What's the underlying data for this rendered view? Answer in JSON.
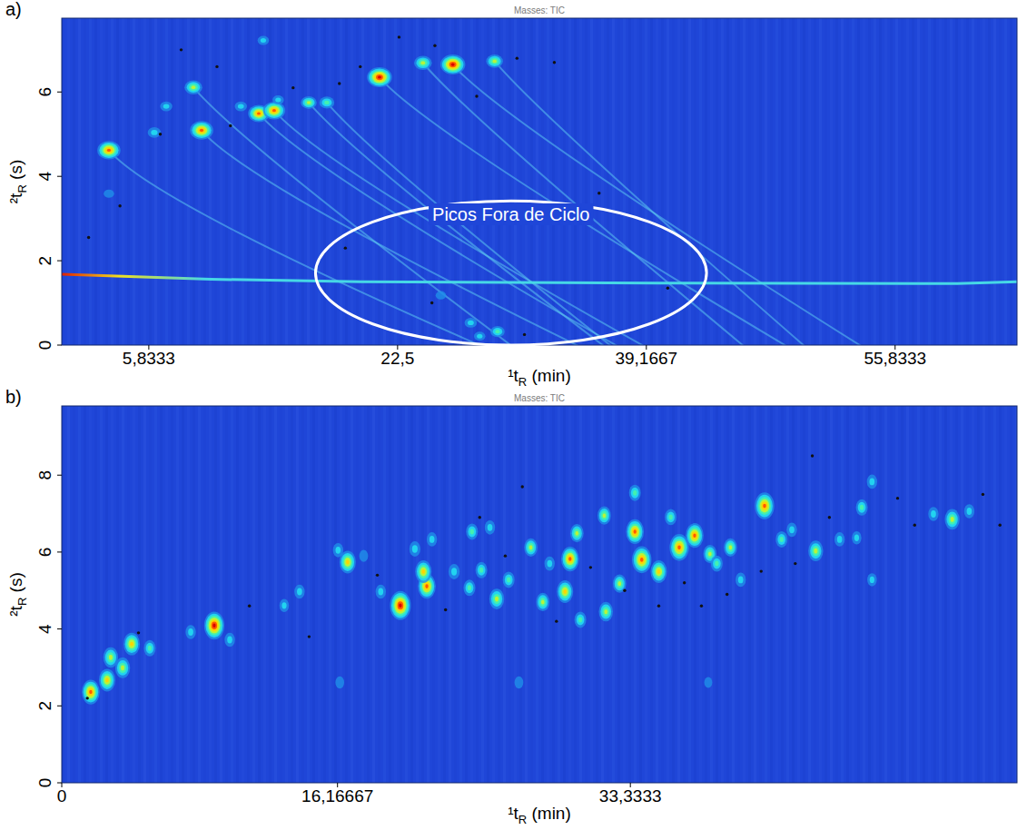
{
  "chart_data": [
    {
      "type": "scatter",
      "panel_label": "a)",
      "header": "Masses: TIC",
      "x_label": "¹tR (min)",
      "y_label": "²tR (s)",
      "xlim": [
        0,
        64
      ],
      "xticks": [
        {
          "value": 5.8333,
          "label": "5,8333"
        },
        {
          "value": 22.5,
          "label": "22,5"
        },
        {
          "value": 39.1667,
          "label": "39,1667"
        },
        {
          "value": 55.8333,
          "label": "55,8333"
        }
      ],
      "ylim": [
        0,
        7.75
      ],
      "yticks": [
        0,
        2,
        4,
        6
      ],
      "zlim": [
        0,
        1
      ],
      "series": [
        {
          "type": "scatter",
          "marker": "blob",
          "x": [
            3.16,
            9.37,
            8.82,
            13.2,
            14.23,
            16.55,
            17.76,
            21.29,
            24.2,
            26.2,
            29.0,
            6.2,
            7.0,
            12.0,
            14.5,
            3.16,
            25.4,
            27.4,
            29.2,
            28.0,
            13.5
          ],
          "values": [
            4.62,
            5.09,
            6.11,
            5.49,
            5.56,
            5.75,
            5.75,
            6.35,
            6.69,
            6.65,
            6.73,
            5.04,
            5.66,
            5.66,
            5.81,
            3.59,
            1.18,
            0.53,
            0.32,
            0.21,
            7.22
          ],
          "intensity": [
            0.9,
            0.9,
            0.6,
            0.8,
            0.85,
            0.5,
            0.45,
            1.0,
            0.6,
            1.0,
            0.55,
            0.35,
            0.3,
            0.3,
            0.25,
            0.2,
            0.2,
            0.3,
            0.4,
            0.25,
            0.25
          ]
        },
        {
          "type": "scatter",
          "marker": "dot",
          "color": "#111111",
          "x": [
            1.8,
            3.9,
            6.6,
            10.4,
            11.3,
            15.5,
            18.6,
            20.0,
            22.6,
            25.0,
            27.8,
            30.5,
            33.0,
            24.8,
            31.0,
            19.0,
            8.0,
            36.0,
            40.6
          ],
          "values": [
            2.55,
            3.3,
            5.0,
            6.6,
            5.2,
            6.1,
            6.2,
            6.6,
            7.3,
            7.1,
            5.9,
            6.8,
            6.7,
            1.0,
            0.25,
            2.3,
            7.0,
            3.6,
            1.35
          ]
        },
        {
          "type": "line",
          "color": "#46d8e6",
          "x": [
            0,
            5,
            10,
            20,
            40,
            60,
            64
          ],
          "values": [
            1.68,
            1.62,
            1.56,
            1.5,
            1.47,
            1.46,
            1.5
          ]
        }
      ],
      "annotations": [
        {
          "text": "Picos Fora de Ciclo",
          "x": 30.1,
          "y": 2.95,
          "ellipse": {
            "cx": 30.1,
            "cy": 1.71,
            "rx": 13.1,
            "ry": 1.71
          }
        }
      ]
    },
    {
      "type": "scatter",
      "panel_label": "b)",
      "header": "Masses: TIC",
      "x_label": "¹tR (min)",
      "y_label": "²tR (s)",
      "xlim": [
        0,
        56
      ],
      "xticks": [
        0,
        {
          "value": 16.16667,
          "label": "16,16667"
        },
        {
          "value": 33.3333,
          "label": "33,3333"
        }
      ],
      "ylim": [
        0,
        9.8
      ],
      "yticks": [
        0,
        2,
        4,
        6,
        8
      ],
      "zlim": [
        0,
        1
      ],
      "series": [
        {
          "type": "scatter",
          "marker": "blob",
          "x": [
            1.7,
            2.66,
            3.57,
            2.87,
            4.1,
            5.16,
            7.56,
            8.94,
            9.85,
            13.04,
            13.94,
            16.76,
            16.2,
            17.7,
            19.85,
            21.4,
            21.2,
            21.7,
            24.05,
            24.6,
            25.5,
            26.2,
            27.5,
            28.2,
            28.6,
            29.5,
            29.8,
            30.2,
            30.4,
            31.8,
            31.9,
            32.7,
            33.6,
            34.0,
            35.0,
            33.6,
            35.7,
            36.2,
            37.1,
            38.0,
            38.4,
            39.2,
            39.8,
            41.2,
            42.2,
            42.8,
            44.2,
            45.6,
            46.6,
            46.9,
            47.5,
            51.1,
            52.2,
            53.2,
            47.5,
            16.3,
            26.8,
            37.9,
            23.9,
            23.0,
            25.1,
            20.7,
            18.7
          ],
          "values": [
            2.36,
            2.67,
            2.99,
            3.26,
            3.61,
            3.5,
            3.92,
            4.09,
            3.72,
            4.61,
            4.97,
            5.74,
            6.05,
            5.9,
            4.61,
            5.11,
            5.49,
            6.33,
            6.53,
            5.53,
            4.78,
            5.28,
            6.12,
            4.7,
            5.7,
            4.97,
            5.82,
            6.49,
            4.24,
            6.95,
            4.45,
            5.18,
            6.53,
            5.8,
            5.49,
            7.54,
            6.91,
            6.12,
            6.43,
            5.95,
            5.7,
            6.12,
            5.28,
            7.2,
            6.33,
            6.58,
            6.03,
            6.33,
            6.37,
            7.16,
            7.83,
            6.99,
            6.85,
            7.06,
            5.28,
            2.61,
            2.61,
            2.61,
            5.07,
            5.49,
            6.64,
            6.08,
            4.97
          ],
          "intensity": [
            0.8,
            0.7,
            0.6,
            0.6,
            0.7,
            0.4,
            0.3,
            0.95,
            0.3,
            0.25,
            0.3,
            0.7,
            0.3,
            0.2,
            1.0,
            0.8,
            0.7,
            0.3,
            0.4,
            0.4,
            0.6,
            0.4,
            0.5,
            0.5,
            0.3,
            0.7,
            0.8,
            0.5,
            0.4,
            0.5,
            0.55,
            0.5,
            0.8,
            0.9,
            0.7,
            0.4,
            0.4,
            0.9,
            0.8,
            0.5,
            0.4,
            0.5,
            0.3,
            0.9,
            0.4,
            0.3,
            0.6,
            0.3,
            0.25,
            0.4,
            0.3,
            0.3,
            0.6,
            0.3,
            0.25,
            0.2,
            0.2,
            0.15,
            0.4,
            0.35,
            0.3,
            0.35,
            0.3
          ]
        },
        {
          "type": "scatter",
          "marker": "dot",
          "color": "#111111",
          "x": [
            1.5,
            4.5,
            11,
            14.5,
            18.5,
            22.5,
            24.5,
            27,
            29,
            31,
            33,
            35,
            36.5,
            37.5,
            39,
            41,
            43,
            45,
            49,
            50,
            54,
            55,
            44,
            26
          ],
          "values": [
            2.2,
            3.9,
            4.6,
            3.8,
            5.4,
            4.5,
            6.9,
            7.7,
            4.2,
            5.6,
            5.0,
            4.6,
            5.2,
            4.6,
            4.9,
            5.5,
            5.7,
            6.9,
            7.4,
            6.7,
            7.5,
            6.7,
            8.5,
            5.9
          ]
        }
      ]
    }
  ]
}
